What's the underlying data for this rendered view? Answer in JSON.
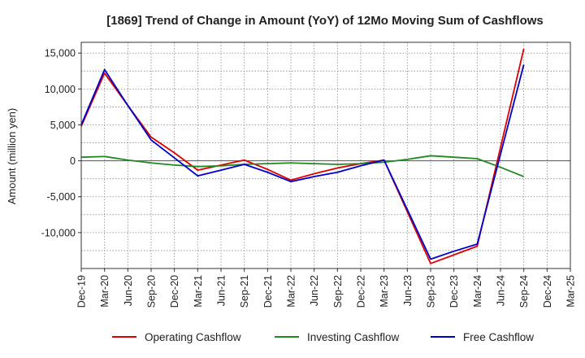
{
  "chart_data": {
    "type": "line",
    "title": "[1869]  Trend of Change in Amount (YoY) of 12Mo Moving Sum of Cashflows",
    "xlabel": "",
    "ylabel": "Amount (million yen)",
    "ylim": [
      -15000,
      16500
    ],
    "yticks": [
      15000,
      10000,
      5000,
      0,
      -5000,
      -10000
    ],
    "ytick_labels": [
      "15,000",
      "10,000",
      "5,000",
      "0",
      "-5,000",
      "-10,000"
    ],
    "categories": [
      "Dec-19",
      "Mar-20",
      "Jun-20",
      "Sep-20",
      "Dec-20",
      "Mar-21",
      "Jun-21",
      "Sep-21",
      "Dec-21",
      "Mar-22",
      "Jun-22",
      "Sep-22",
      "Dec-22",
      "Mar-23",
      "Jun-23",
      "Sep-23",
      "Dec-23",
      "Mar-24",
      "Jun-24",
      "Sep-24",
      "Dec-24",
      "Mar-25"
    ],
    "grid": true,
    "legend_position": "bottom",
    "series": [
      {
        "name": "Operating Cashflow",
        "color": "#dd0000",
        "values": [
          4800,
          12200,
          7700,
          3300,
          1100,
          -1300,
          -600,
          100,
          -1200,
          -2700,
          -1800,
          -1000,
          -400,
          100,
          null,
          -14300,
          -13100,
          -11900,
          null,
          15600,
          null,
          null
        ]
      },
      {
        "name": "Investing Cashflow",
        "color": "#228822",
        "values": [
          500,
          600,
          100,
          -300,
          -600,
          -800,
          -700,
          -500,
          -400,
          -300,
          -400,
          -500,
          -400,
          -200,
          200,
          700,
          500,
          300,
          -900,
          -2200,
          null,
          null
        ]
      },
      {
        "name": "Free Cashflow",
        "color": "#0000cc",
        "values": [
          5000,
          12700,
          7700,
          2900,
          400,
          -2100,
          -1300,
          -500,
          -1600,
          -2900,
          -2200,
          -1600,
          -700,
          100,
          null,
          -13700,
          -12600,
          -11600,
          null,
          13400,
          null,
          null
        ]
      }
    ]
  }
}
